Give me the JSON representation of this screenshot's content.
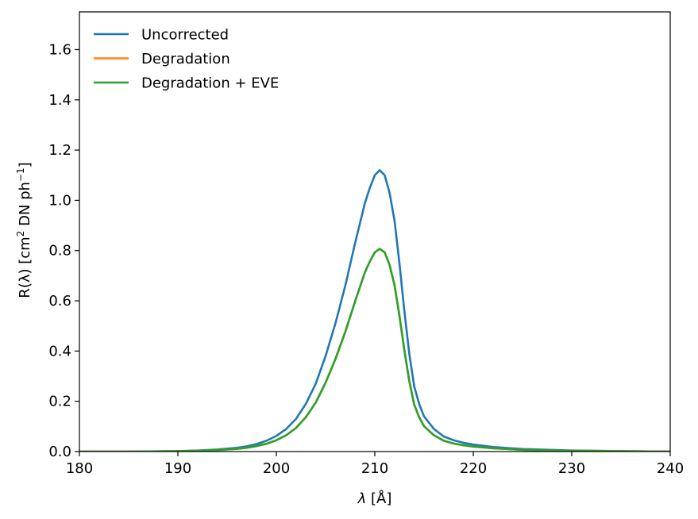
{
  "chart_data": {
    "type": "line",
    "title": "",
    "xlabel_var": "λ",
    "xlabel_unit": "[Å]",
    "ylabel_main": "R(λ) [cm",
    "ylabel_sup1": "2",
    "ylabel_mid": " DN ph",
    "ylabel_sup2": "−1",
    "ylabel_end": "]",
    "xlim": [
      180,
      240
    ],
    "ylim": [
      0,
      1.75
    ],
    "xticks": [
      180,
      190,
      200,
      210,
      220,
      230,
      240
    ],
    "xtick_labels": [
      "180",
      "190",
      "200",
      "210",
      "220",
      "230",
      "240"
    ],
    "yticks": [
      0.0,
      0.2,
      0.4,
      0.6,
      0.8,
      1.0,
      1.2,
      1.4,
      1.6
    ],
    "ytick_labels": [
      "0.0",
      "0.2",
      "0.4",
      "0.6",
      "0.8",
      "1.0",
      "1.2",
      "1.4",
      "1.6"
    ],
    "grid": false,
    "legend_position": "top-left",
    "x": [
      180,
      185,
      190,
      192,
      194,
      196,
      197,
      198,
      199,
      200,
      201,
      202,
      203,
      204,
      205,
      206,
      207,
      208,
      209,
      209.5,
      210,
      210.5,
      211,
      211.5,
      212,
      212.5,
      213,
      213.5,
      214,
      214.5,
      215,
      216,
      217,
      218,
      219,
      220,
      222,
      225,
      230,
      235,
      240
    ],
    "series": [
      {
        "name": "Uncorrected",
        "color": "#1f77b4",
        "values": [
          0.0,
          0.0,
          0.002,
          0.004,
          0.008,
          0.015,
          0.021,
          0.03,
          0.043,
          0.062,
          0.09,
          0.13,
          0.19,
          0.27,
          0.38,
          0.51,
          0.66,
          0.83,
          0.99,
          1.05,
          1.1,
          1.12,
          1.1,
          1.03,
          0.92,
          0.75,
          0.56,
          0.39,
          0.26,
          0.19,
          0.14,
          0.09,
          0.06,
          0.045,
          0.035,
          0.028,
          0.018,
          0.01,
          0.004,
          0.002,
          0.0
        ]
      },
      {
        "name": "Degradation",
        "color": "#ff7f0e",
        "values": [
          0.0,
          0.0,
          0.0015,
          0.003,
          0.006,
          0.011,
          0.015,
          0.022,
          0.031,
          0.045,
          0.065,
          0.094,
          0.137,
          0.195,
          0.274,
          0.368,
          0.476,
          0.598,
          0.714,
          0.757,
          0.793,
          0.807,
          0.793,
          0.743,
          0.663,
          0.541,
          0.404,
          0.281,
          0.187,
          0.137,
          0.101,
          0.065,
          0.043,
          0.032,
          0.025,
          0.02,
          0.013,
          0.007,
          0.003,
          0.0015,
          0.0
        ]
      },
      {
        "name": "Degradation + EVE",
        "color": "#2ca02c",
        "values": [
          0.0,
          0.0,
          0.0015,
          0.003,
          0.006,
          0.011,
          0.015,
          0.022,
          0.031,
          0.045,
          0.065,
          0.094,
          0.137,
          0.195,
          0.274,
          0.368,
          0.476,
          0.598,
          0.714,
          0.757,
          0.793,
          0.807,
          0.793,
          0.743,
          0.663,
          0.541,
          0.404,
          0.281,
          0.187,
          0.137,
          0.101,
          0.065,
          0.043,
          0.032,
          0.025,
          0.02,
          0.013,
          0.007,
          0.003,
          0.0015,
          0.0
        ]
      }
    ]
  }
}
